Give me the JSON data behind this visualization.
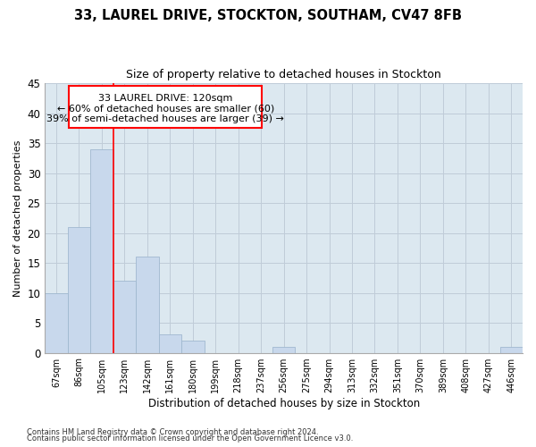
{
  "title_line1": "33, LAUREL DRIVE, STOCKTON, SOUTHAM, CV47 8FB",
  "title_line2": "Size of property relative to detached houses in Stockton",
  "xlabel": "Distribution of detached houses by size in Stockton",
  "ylabel": "Number of detached properties",
  "categories": [
    "67sqm",
    "86sqm",
    "105sqm",
    "123sqm",
    "142sqm",
    "161sqm",
    "180sqm",
    "199sqm",
    "218sqm",
    "237sqm",
    "256sqm",
    "275sqm",
    "294sqm",
    "313sqm",
    "332sqm",
    "351sqm",
    "370sqm",
    "389sqm",
    "408sqm",
    "427sqm",
    "446sqm"
  ],
  "values": [
    10,
    21,
    34,
    12,
    16,
    3,
    2,
    0,
    0,
    0,
    1,
    0,
    0,
    0,
    0,
    0,
    0,
    0,
    0,
    0,
    1
  ],
  "bar_color": "#c8d8ec",
  "bar_edge_color": "#a0b8d0",
  "bar_edge_width": 0.6,
  "ylim": [
    0,
    45
  ],
  "yticks": [
    0,
    5,
    10,
    15,
    20,
    25,
    30,
    35,
    40,
    45
  ],
  "property_label": "33 LAUREL DRIVE: 120sqm",
  "annotation_line2": "← 60% of detached houses are smaller (60)",
  "annotation_line3": "39% of semi-detached houses are larger (39) →",
  "red_line_x": 2.5,
  "grid_color": "#c0ccd8",
  "background_color": "#dce8f0",
  "footer_line1": "Contains HM Land Registry data © Crown copyright and database right 2024.",
  "footer_line2": "Contains public sector information licensed under the Open Government Licence v3.0."
}
